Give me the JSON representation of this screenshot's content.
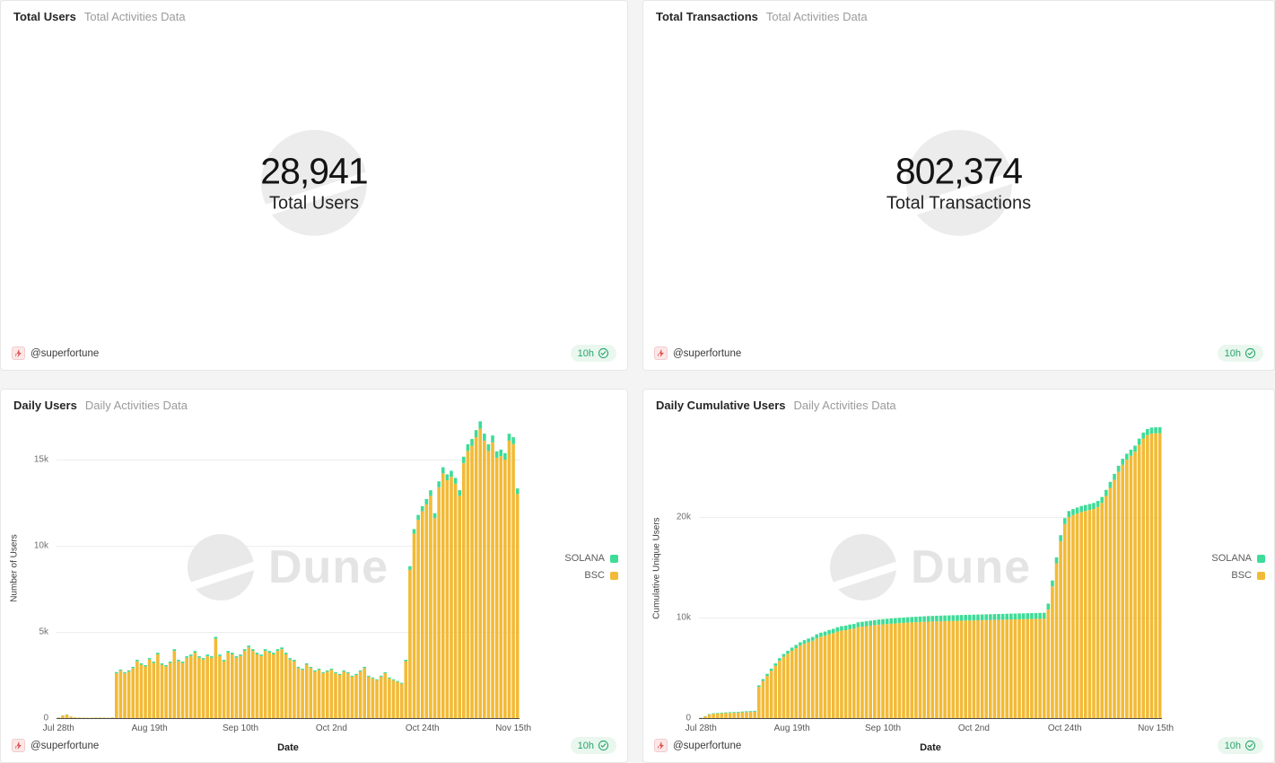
{
  "footer": {
    "author": "@superfortune",
    "badge_age": "10h"
  },
  "watermark_text": "Dune",
  "colors": {
    "solana": "#3ddc97",
    "bsc": "#f2ba36",
    "badge_text": "#27a567",
    "badge_bg": "#e9f7ef",
    "grid": "#ededed",
    "axis": "#4a4a4a",
    "watermark": "#e9e9e9"
  },
  "panels": {
    "total_users": {
      "title": "Total Users",
      "subtitle": "Total Activities Data",
      "value": "28,941",
      "value_label": "Total Users"
    },
    "total_transactions": {
      "title": "Total Transactions",
      "subtitle": "Total Activities Data",
      "value": "802,374",
      "value_label": "Total Transactions"
    },
    "daily_users": {
      "title": "Daily Users",
      "subtitle": "Daily Activities Data"
    },
    "daily_cumulative_users": {
      "title": "Daily Cumulative Users",
      "subtitle": "Daily Activities Data"
    }
  },
  "chart_data": [
    {
      "type": "bar",
      "stacked": true,
      "title": "Daily Users",
      "xlabel": "Date",
      "ylabel": "Number of Users",
      "ylim": [
        0,
        17500
      ],
      "grid": true,
      "legend_position": "right",
      "yticks": [
        {
          "value": 0,
          "label": "0"
        },
        {
          "value": 5000,
          "label": "5k"
        },
        {
          "value": 10000,
          "label": "10k"
        },
        {
          "value": 15000,
          "label": "15k"
        }
      ],
      "xticks": [
        {
          "index": 0,
          "label": "Jul 28th"
        },
        {
          "index": 22,
          "label": "Aug 19th"
        },
        {
          "index": 44,
          "label": "Sep 10th"
        },
        {
          "index": 66,
          "label": "Oct 2nd"
        },
        {
          "index": 88,
          "label": "Oct 24th"
        },
        {
          "index": 110,
          "label": "Nov 15th"
        }
      ],
      "series": [
        {
          "name": "SOLANA",
          "color": "#3ddc97",
          "values": [
            5,
            10,
            15,
            8,
            5,
            5,
            5,
            5,
            5,
            5,
            5,
            5,
            5,
            5,
            70,
            70,
            65,
            70,
            75,
            85,
            80,
            75,
            85,
            80,
            95,
            80,
            75,
            80,
            100,
            85,
            80,
            90,
            90,
            95,
            90,
            85,
            90,
            90,
            115,
            90,
            85,
            95,
            95,
            90,
            90,
            100,
            105,
            100,
            95,
            90,
            100,
            95,
            95,
            100,
            100,
            95,
            85,
            85,
            75,
            70,
            80,
            75,
            70,
            70,
            65,
            70,
            70,
            65,
            65,
            70,
            65,
            60,
            65,
            70,
            75,
            60,
            60,
            55,
            60,
            65,
            60,
            55,
            55,
            50,
            85,
            215,
            270,
            290,
            300,
            310,
            320,
            290,
            335,
            355,
            345,
            350,
            340,
            325,
            370,
            390,
            395,
            410,
            420,
            405,
            390,
            400,
            380,
            380,
            375,
            400,
            400,
            325
          ]
        },
        {
          "name": "BSC",
          "color": "#f2ba36",
          "values": [
            30,
            150,
            200,
            80,
            40,
            30,
            25,
            20,
            20,
            25,
            30,
            25,
            20,
            30,
            2600,
            2750,
            2600,
            2700,
            2900,
            3300,
            3100,
            3000,
            3400,
            3200,
            3700,
            3100,
            3000,
            3200,
            3900,
            3300,
            3200,
            3500,
            3600,
            3800,
            3500,
            3400,
            3600,
            3500,
            4600,
            3600,
            3300,
            3800,
            3700,
            3500,
            3600,
            3900,
            4100,
            3900,
            3700,
            3600,
            3900,
            3800,
            3700,
            3900,
            4000,
            3700,
            3400,
            3300,
            2900,
            2800,
            3100,
            2900,
            2700,
            2800,
            2600,
            2700,
            2800,
            2600,
            2500,
            2700,
            2600,
            2400,
            2500,
            2700,
            2900,
            2400,
            2300,
            2200,
            2400,
            2600,
            2300,
            2200,
            2100,
            2000,
            3300,
            8600,
            10700,
            11500,
            12000,
            12400,
            12900,
            11600,
            13400,
            14200,
            13800,
            14000,
            13600,
            12900,
            14800,
            15500,
            15800,
            16300,
            16800,
            16100,
            15500,
            16000,
            15100,
            15200,
            15000,
            16100,
            15900,
            13000
          ]
        }
      ],
      "stack_order": [
        "BSC",
        "SOLANA"
      ]
    },
    {
      "type": "bar",
      "stacked": true,
      "title": "Daily Cumulative Users",
      "xlabel": "Date",
      "ylabel": "Cumulative Unique Users",
      "ylim": [
        0,
        30000
      ],
      "grid": true,
      "legend_position": "right",
      "yticks": [
        {
          "value": 0,
          "label": "0"
        },
        {
          "value": 10000,
          "label": "10k"
        },
        {
          "value": 20000,
          "label": "20k"
        }
      ],
      "xticks": [
        {
          "index": 0,
          "label": "Jul 28th"
        },
        {
          "index": 22,
          "label": "Aug 19th"
        },
        {
          "index": 44,
          "label": "Sep 10th"
        },
        {
          "index": 66,
          "label": "Oct 2nd"
        },
        {
          "index": 88,
          "label": "Oct 24th"
        },
        {
          "index": 110,
          "label": "Nov 15th"
        }
      ],
      "series": [
        {
          "name": "SOLANA",
          "color": "#3ddc97",
          "values": [
            10,
            25,
            45,
            55,
            60,
            65,
            70,
            72,
            75,
            78,
            82,
            85,
            88,
            92,
            160,
            185,
            205,
            225,
            245,
            265,
            285,
            300,
            315,
            330,
            345,
            355,
            365,
            375,
            390,
            400,
            410,
            420,
            428,
            438,
            446,
            452,
            460,
            466,
            478,
            484,
            490,
            496,
            502,
            508,
            512,
            516,
            520,
            524,
            528,
            531,
            535,
            538,
            541,
            544,
            547,
            550,
            552,
            554,
            556,
            558,
            560,
            562,
            564,
            566,
            568,
            570,
            571,
            572,
            573,
            574,
            575,
            576,
            577,
            578,
            579,
            580,
            581,
            582,
            583,
            584,
            585,
            586,
            587,
            588,
            590,
            592,
            594,
            596,
            597,
            597,
            598,
            598,
            599,
            599,
            600,
            600,
            600,
            600,
            600,
            601,
            601,
            601,
            601,
            601,
            601,
            601,
            601,
            601,
            601,
            601,
            601,
            601
          ]
        },
        {
          "name": "BSC",
          "color": "#f2ba36",
          "values": [
            30,
            170,
            360,
            430,
            460,
            480,
            500,
            515,
            530,
            550,
            575,
            595,
            610,
            635,
            3100,
            3700,
            4200,
            4700,
            5200,
            5700,
            6100,
            6400,
            6700,
            6950,
            7200,
            7400,
            7550,
            7700,
            7950,
            8100,
            8200,
            8350,
            8450,
            8600,
            8700,
            8750,
            8850,
            8900,
            9050,
            9100,
            9150,
            9200,
            9250,
            9300,
            9330,
            9360,
            9390,
            9420,
            9450,
            9470,
            9500,
            9520,
            9540,
            9560,
            9580,
            9600,
            9615,
            9630,
            9640,
            9650,
            9660,
            9670,
            9680,
            9690,
            9700,
            9710,
            9720,
            9730,
            9740,
            9750,
            9760,
            9770,
            9780,
            9790,
            9800,
            9810,
            9820,
            9830,
            9840,
            9850,
            9860,
            9870,
            9880,
            9890,
            10800,
            13100,
            15400,
            17600,
            19300,
            20000,
            20200,
            20350,
            20500,
            20600,
            20700,
            20800,
            21000,
            21400,
            22100,
            22900,
            23700,
            24500,
            25200,
            25700,
            26100,
            26500,
            27200,
            27800,
            28150,
            28300,
            28330,
            28340
          ]
        }
      ],
      "stack_order": [
        "BSC",
        "SOLANA"
      ]
    }
  ]
}
